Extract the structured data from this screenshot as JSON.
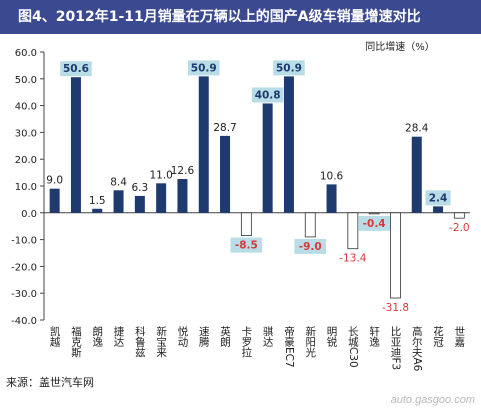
{
  "title": "图4、2012年1-11月销量在万辆以上的国产A级车销量增速对比",
  "source": "来源：盖世汽车网",
  "watermark": "auto.gasgoo.com",
  "colors": {
    "title_bg": "#3b4a90",
    "bar_positive": "#1f3a6e",
    "bar_negative": "#ffffff",
    "bar_negative_stroke": "#333333",
    "label_negative": "#d9383a",
    "highlight_box": "#b9dde6"
  },
  "chart_data": {
    "type": "bar",
    "title": "图4、2012年1-11月销量在万辆以上的国产A级车销量增速对比",
    "legend": "同比增速（%）",
    "ylim": [
      -40,
      60
    ],
    "yticks": [
      -40,
      -30,
      -20,
      -10,
      0,
      10,
      20,
      30,
      40,
      50,
      60
    ],
    "ytick_labels": [
      "-40.0",
      "-30.0",
      "-20.0",
      "-10.0",
      "0.0",
      "10.0",
      "20.0",
      "30.0",
      "40.0",
      "50.0",
      "60.0"
    ],
    "grid": false,
    "categories": [
      "凯越",
      "福克斯",
      "朗逸",
      "捷达",
      "科鲁兹",
      "新宝来",
      "悦动",
      "速腾",
      "英朗",
      "卡罗拉",
      "骐达",
      "帝豪EC7",
      "新阳光",
      "明锐",
      "长城C30",
      "轩逸",
      "比亚迪F3",
      "高尔夫A6",
      "花冠",
      "世嘉"
    ],
    "values": [
      9.0,
      50.6,
      1.5,
      8.4,
      6.3,
      11.0,
      12.6,
      50.9,
      28.7,
      -8.5,
      40.8,
      50.9,
      -9.0,
      10.6,
      -13.4,
      -0.4,
      -31.8,
      28.4,
      2.4,
      -2.0
    ],
    "value_labels": [
      "9.0",
      "50.6",
      "1.5",
      "8.4",
      "6.3",
      "11.0",
      "12.6",
      "50.9",
      "28.7",
      "-8.5",
      "40.8",
      "50.9",
      "-9.0",
      "10.6",
      "-13.4",
      "-0.4",
      "-31.8",
      "28.4",
      "2.4",
      "-2.0"
    ],
    "highlighted": [
      1,
      7,
      9,
      10,
      11,
      12,
      15,
      18
    ]
  }
}
